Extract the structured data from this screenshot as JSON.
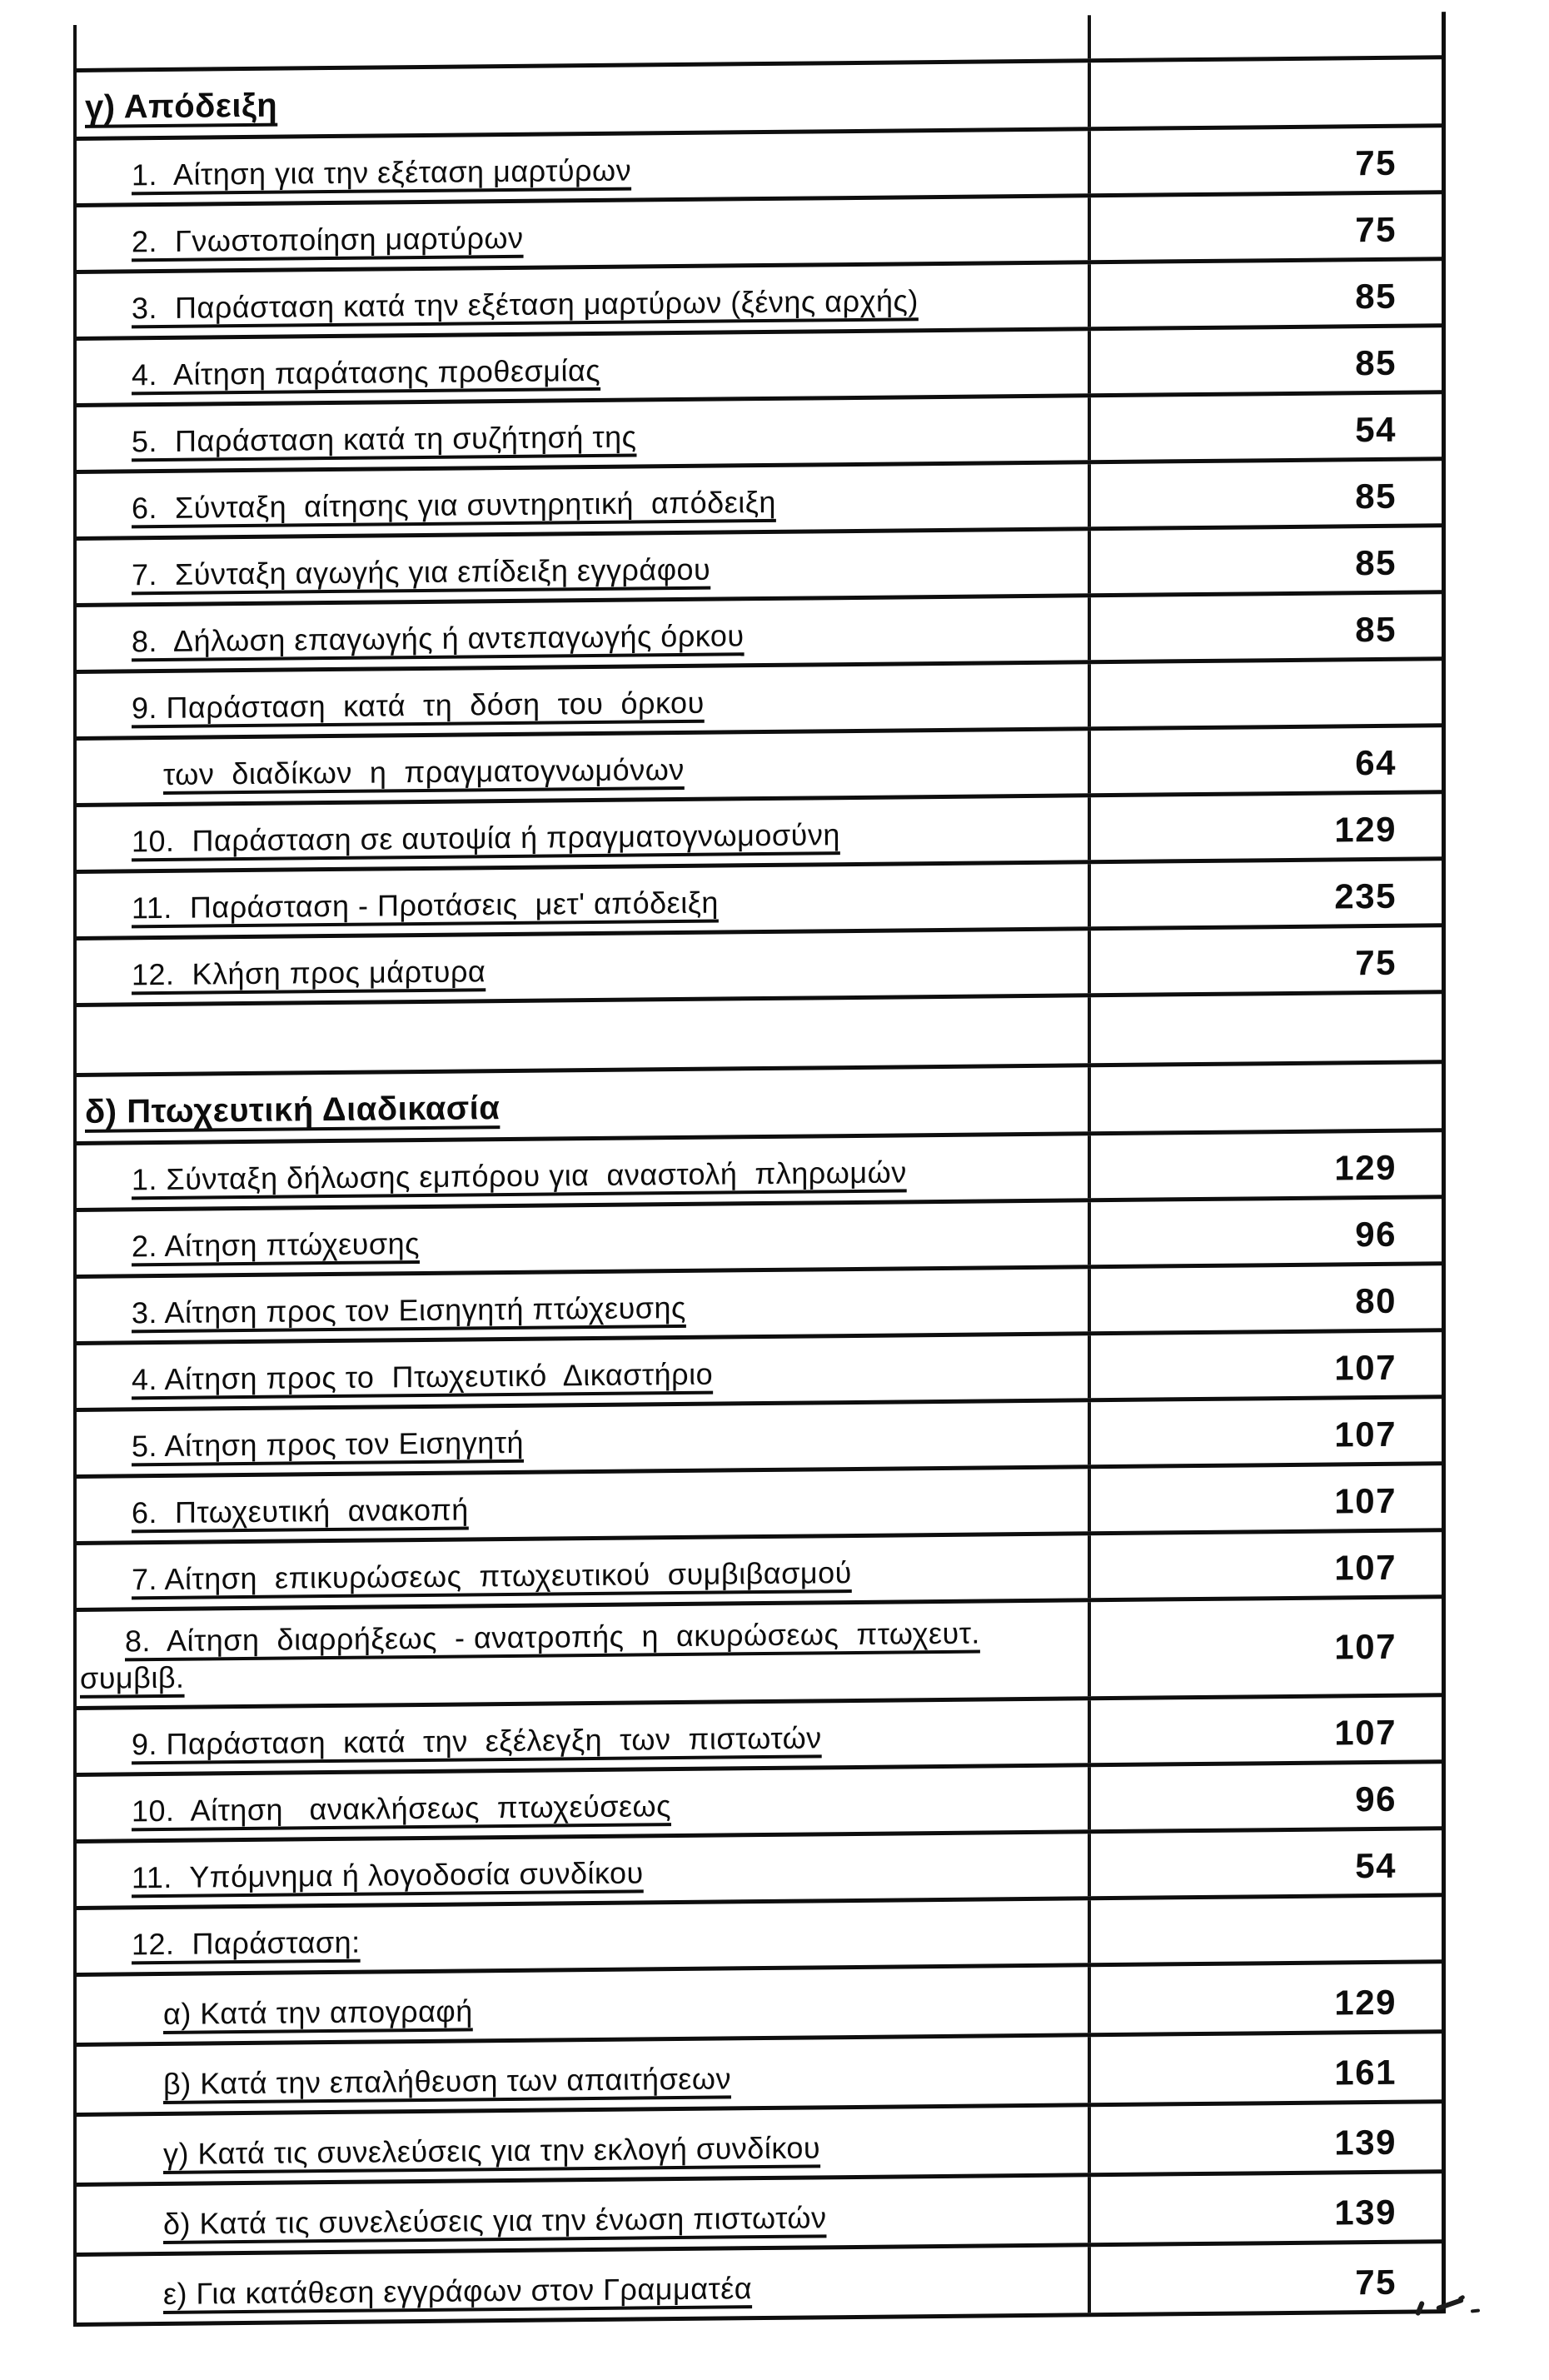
{
  "table": {
    "columns": {
      "description": "",
      "amount": ""
    },
    "rows": [
      {
        "type": "partial",
        "label": "",
        "value": ""
      },
      {
        "type": "section",
        "label": "γ) Απόδειξη",
        "value": ""
      },
      {
        "type": "item",
        "label": "1.  Αίτηση για την εξέταση μαρτύρων",
        "value": "75"
      },
      {
        "type": "item",
        "label": "2.  Γνωστοποίηση μαρτύρων",
        "value": "75"
      },
      {
        "type": "item",
        "label": "3.  Παράσταση κατά την εξέταση μαρτύρων (ξένης αρχής)",
        "value": "85"
      },
      {
        "type": "item",
        "label": "4.  Αίτηση παράτασης προθεσμίας",
        "value": "85"
      },
      {
        "type": "item",
        "label": "5.  Παράσταση κατά τη συζήτησή της",
        "value": "54"
      },
      {
        "type": "item",
        "label": "6.  Σύνταξη  αίτησης για συντηρητική  απόδειξη",
        "value": "85"
      },
      {
        "type": "item",
        "label": "7.  Σύνταξη αγωγής για επίδειξη εγγράφου",
        "value": "85"
      },
      {
        "type": "item",
        "label": "8.  Δήλωση επαγωγής ή αντεπαγωγής όρκου",
        "value": "85"
      },
      {
        "type": "item",
        "label": "9. Παράσταση  κατά  τη  δόση  του  όρκου",
        "value": ""
      },
      {
        "type": "cont",
        "label": "των  διαδίκων  η  πραγματογνωμόνων",
        "value": "64"
      },
      {
        "type": "item",
        "label": "10.  Παράσταση σε αυτοψία ή πραγματογνωμοσύνη",
        "value": "129"
      },
      {
        "type": "item",
        "label": "11.  Παράσταση - Προτάσεις  μετ' απόδειξη",
        "value": "235"
      },
      {
        "type": "item",
        "label": "12.  Κλήση προς μάρτυρα",
        "value": "75"
      },
      {
        "type": "empty",
        "label": "",
        "value": ""
      },
      {
        "type": "section",
        "label": "δ) Πτωχευτική Διαδικασία",
        "value": ""
      },
      {
        "type": "item",
        "label": "1. Σύνταξη δήλωσης εμπόρου για  αναστολή  πληρωμών",
        "value": "129"
      },
      {
        "type": "item",
        "label": "2. Αίτηση πτώχευσης",
        "value": "96"
      },
      {
        "type": "item",
        "label": "3. Αίτηση προς τον Εισηγητή πτώχευσης",
        "value": "80"
      },
      {
        "type": "item",
        "label": "4. Αίτηση προς το  Πτωχευτικό  Δικαστήριο",
        "value": "107"
      },
      {
        "type": "item",
        "label": "5. Αίτηση προς τον Εισηγητή",
        "value": "107"
      },
      {
        "type": "item",
        "label": "6.  Πτωχευτική  ανακοπή",
        "value": "107"
      },
      {
        "type": "item",
        "label": "7. Αίτηση  επικυρώσεως  πτωχευτικού  συμβιβασμού",
        "value": "107"
      },
      {
        "type": "twoline",
        "label": "8.  Αίτηση  διαρρήξεως  - ανατροπής  η  ακυρώσεως  πτωχευτ.",
        "label2": "συμβιβ.",
        "value": "107"
      },
      {
        "type": "item",
        "label": "9. Παράσταση  κατά  την  εξέλεγξη  των  πιστωτών",
        "value": "107"
      },
      {
        "type": "item",
        "label": "10.  Αίτηση   ανακλήσεως  πτωχεύσεως",
        "value": "96"
      },
      {
        "type": "item",
        "label": "11.  Υπόμνημα ή λογοδοσία συνδίκου",
        "value": "54"
      },
      {
        "type": "item",
        "label": "12.  Παράσταση:",
        "value": ""
      },
      {
        "type": "sub",
        "label": "α) Κατά την απογραφή",
        "value": "129"
      },
      {
        "type": "sub",
        "label": "β) Κατά την επαλήθευση των απαιτήσεων",
        "value": "161"
      },
      {
        "type": "sub",
        "label": "γ) Κατά τις συνελεύσεις για την εκλογή συνδίκου",
        "value": "139"
      },
      {
        "type": "sub",
        "label": "δ) Κατά τις συνελεύσεις για την ένωση πιστωτών",
        "value": "139"
      },
      {
        "type": "sub",
        "label": "ε) Για κατάθεση εγγράφων στον Γραμματέα",
        "value": "75"
      }
    ]
  }
}
